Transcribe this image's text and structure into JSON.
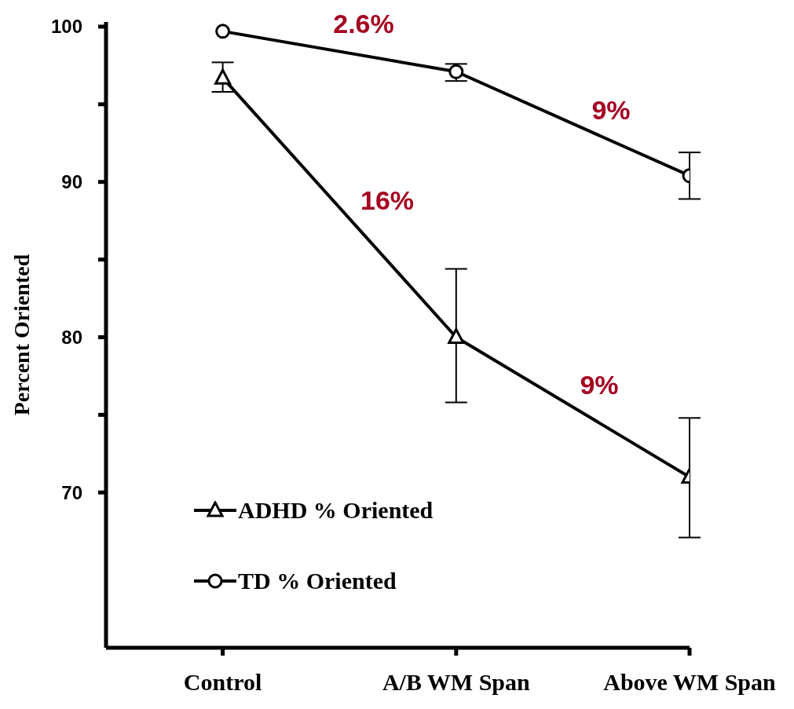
{
  "chart_data": {
    "type": "line",
    "ylabel": "Percent Oriented",
    "categories": [
      "Control",
      "A/B WM Span",
      "Above WM Span"
    ],
    "series": [
      {
        "name": "ADHD % Oriented",
        "color": "#000000",
        "marker": "triangle",
        "values": [
          96.7,
          80.0,
          71.0
        ],
        "errors": [
          [
            95.8,
            97.7
          ],
          [
            75.8,
            84.4
          ],
          [
            67.1,
            74.8
          ]
        ]
      },
      {
        "name": "TD % Oriented",
        "color": "#000000",
        "marker": "circle",
        "values": [
          99.7,
          97.1,
          90.4
        ],
        "errors": [
          null,
          [
            96.5,
            97.6
          ],
          [
            88.9,
            91.9
          ]
        ]
      }
    ],
    "ylim": [
      60,
      100.3
    ],
    "yticks": [
      {
        "value": 70,
        "label": "70"
      },
      {
        "value": 75,
        "label": null
      },
      {
        "value": 80,
        "label": "80"
      },
      {
        "value": 85,
        "label": null
      },
      {
        "value": 90,
        "label": "90"
      },
      {
        "value": 95,
        "label": null
      },
      {
        "value": 100,
        "label": "100"
      }
    ],
    "annotations": [
      "2.6%",
      "9%",
      "16%",
      "9%"
    ],
    "legend": "bottom left",
    "grid": false,
    "line_style": "solid"
  }
}
